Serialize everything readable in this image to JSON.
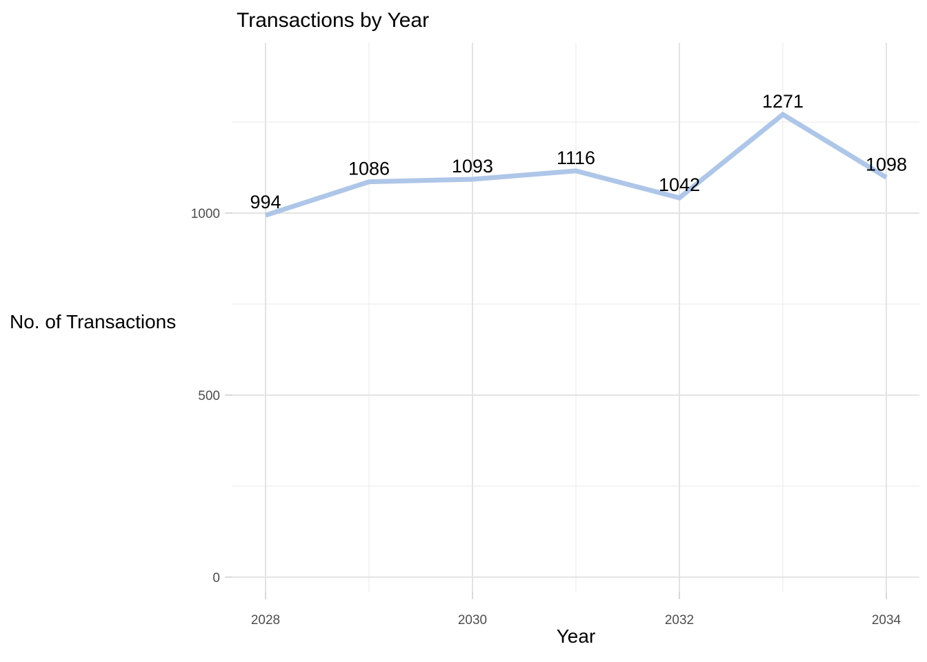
{
  "chart_data": {
    "type": "line",
    "title": "Transactions by Year",
    "xlabel": "Year",
    "ylabel": "No. of Transactions",
    "x": [
      2028,
      2029,
      2030,
      2031,
      2032,
      2033,
      2034
    ],
    "values": [
      994,
      1086,
      1093,
      1116,
      1042,
      1271,
      1098
    ],
    "data_labels": [
      "994",
      "1086",
      "1093",
      "1116",
      "1042",
      "1271",
      "1098"
    ],
    "x_ticks": [
      2028,
      2030,
      2032,
      2034
    ],
    "x_tick_labels": [
      "2028",
      "2030",
      "2032",
      "2034"
    ],
    "x_minor": [
      2029,
      2031,
      2033
    ],
    "y_ticks": [
      0,
      500,
      1000
    ],
    "y_tick_labels": [
      "0",
      "500",
      "1000"
    ],
    "y_minor": [
      250,
      750,
      1250
    ],
    "xlim": [
      2027.68,
      2034.32
    ],
    "ylim": [
      -40,
      1468
    ],
    "grid": "major+minor",
    "legend": "none",
    "colors": {
      "line": "#aec6e8",
      "grid_major": "#e3e3e3",
      "grid_minor": "#ededed",
      "tick": "#d9d9d9",
      "axis_text": "#4d4d4d",
      "text": "#000000",
      "background": "#ffffff"
    }
  }
}
